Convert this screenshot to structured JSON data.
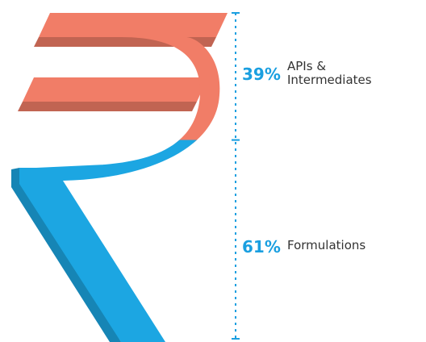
{
  "chart_data": {
    "type": "proportion",
    "categories": [
      "APIs & Intermediates",
      "Formulations"
    ],
    "values": [
      39,
      61
    ],
    "value_labels": [
      "39%",
      "61%"
    ],
    "colors": [
      "#f17d67",
      "#1ca6e2"
    ]
  }
}
